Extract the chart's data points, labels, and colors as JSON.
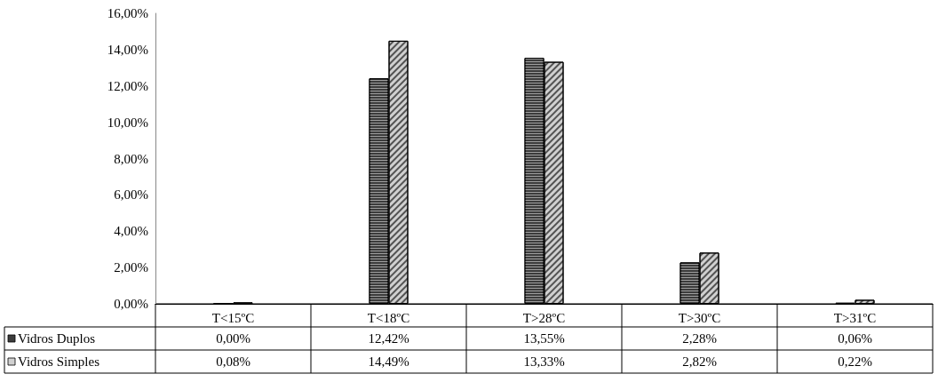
{
  "chart_data": {
    "type": "bar",
    "categories": [
      "T<15ºC",
      "T<18ºC",
      "T>28ºC",
      "T>30ºC",
      "T>31ºC"
    ],
    "series": [
      {
        "name": "Vidros Duplos",
        "color": "#3c3c3c",
        "values": [
          0.0,
          12.42,
          13.55,
          2.28,
          0.06
        ],
        "value_labels": [
          "0,00%",
          "12,42%",
          "13,55%",
          "2,28%",
          "0,06%"
        ]
      },
      {
        "name": "Vidros Simples",
        "color": "#d0d0d0",
        "values": [
          0.08,
          14.49,
          13.33,
          2.82,
          0.22
        ],
        "value_labels": [
          "0,08%",
          "14,49%",
          "13,33%",
          "2,82%",
          "0,22%"
        ]
      }
    ],
    "ylim": [
      0,
      16
    ],
    "yticks": [
      {
        "value": 0,
        "label": "0,00%"
      },
      {
        "value": 2,
        "label": "2,00%"
      },
      {
        "value": 4,
        "label": "4,00%"
      },
      {
        "value": 6,
        "label": "6,00%"
      },
      {
        "value": 8,
        "label": "8,00%"
      },
      {
        "value": 10,
        "label": "10,00%"
      },
      {
        "value": 12,
        "label": "12,00%"
      },
      {
        "value": 14,
        "label": "14,00%"
      },
      {
        "value": 16,
        "label": "16,00%"
      }
    ],
    "grid": false,
    "legend": "bottom left"
  }
}
